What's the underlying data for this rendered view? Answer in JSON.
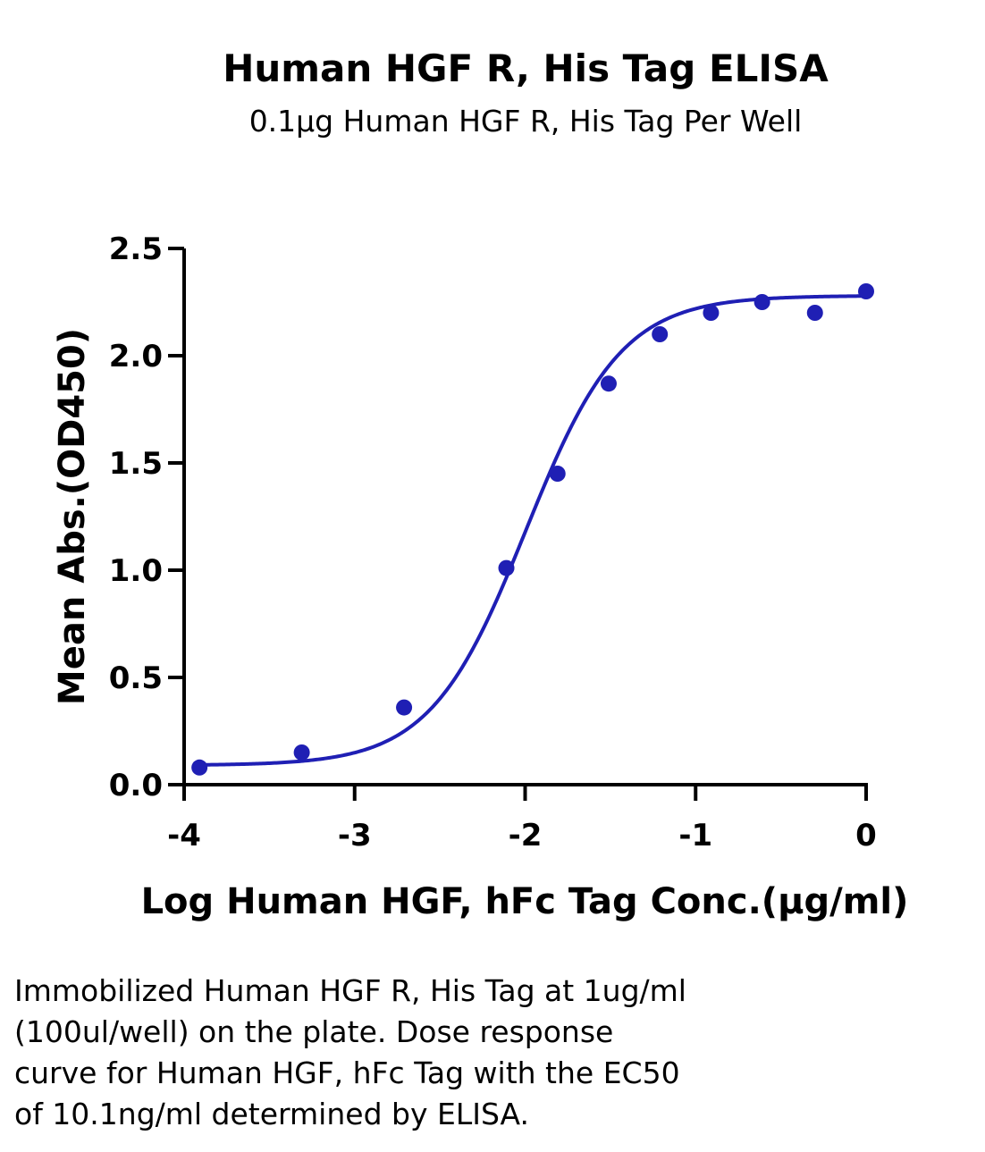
{
  "chart_data": {
    "type": "scatter",
    "title": "Human HGF R, His Tag ELISA",
    "subtitle": "0.1μg Human HGF R, His Tag Per Well",
    "xlabel": "Log Human HGF, hFc Tag Conc.(μg/ml)",
    "ylabel": "Mean Abs.(OD450)",
    "xlim": [
      -4,
      0
    ],
    "ylim": [
      0,
      2.5
    ],
    "x_ticks": [
      "-4",
      "-3",
      "-2",
      "-1",
      "0"
    ],
    "y_ticks": [
      "0.0",
      "0.5",
      "1.0",
      "1.5",
      "2.0",
      "2.5"
    ],
    "color": "#1f1fb4",
    "points": {
      "x": [
        -3.91,
        -3.31,
        -2.71,
        -2.11,
        -1.81,
        -1.51,
        -1.21,
        -0.91,
        -0.61,
        -0.3,
        0.0
      ],
      "y": [
        0.08,
        0.15,
        0.36,
        1.01,
        1.45,
        1.87,
        2.1,
        2.2,
        2.25,
        2.2,
        2.3
      ]
    },
    "fit_curve": {
      "model": "4PL",
      "bottom": 0.09,
      "top": 2.28,
      "log_ec50": -1.996,
      "hill_slope": 1.55
    }
  },
  "caption_lines": [
    "Immobilized Human HGF R, His Tag at 1ug/ml",
    "(100ul/well) on the plate. Dose response",
    "curve for Human HGF, hFc Tag with the EC50",
    "of 10.1ng/ml determined by ELISA."
  ]
}
